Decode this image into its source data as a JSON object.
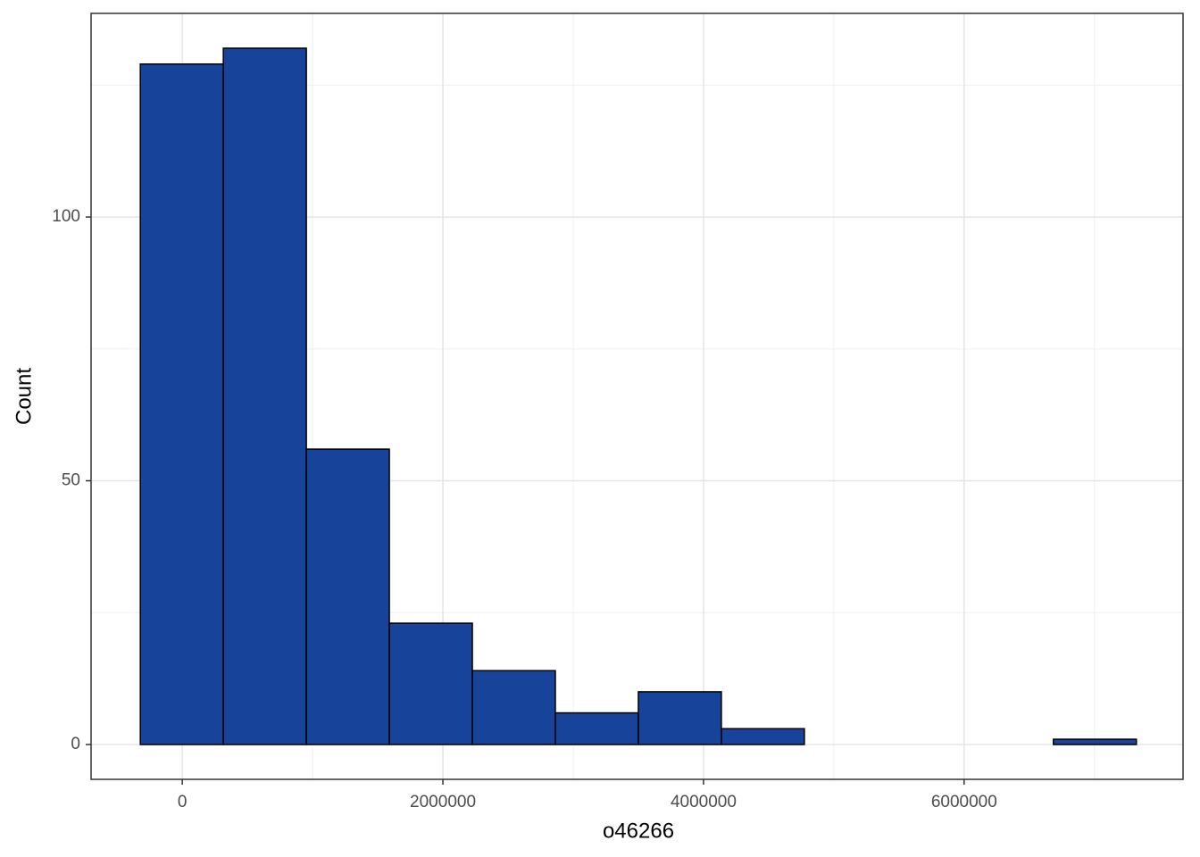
{
  "chart_data": {
    "type": "histogram",
    "x_label": "o46266",
    "y_label": "Count",
    "bins": [
      -322000,
      315000,
      952000,
      1589000,
      2226000,
      2863000,
      3500000,
      4137000,
      4774000,
      5411000,
      6048000,
      6685000,
      7322000
    ],
    "values": [
      129,
      132,
      56,
      23,
      14,
      6,
      10,
      3,
      0,
      0,
      0,
      1
    ],
    "color": "#17449a",
    "edge_color": "#000000",
    "xlim": [
      -700000,
      7680000
    ],
    "ylim": [
      -6.6,
      138.6
    ],
    "xticks": [
      0,
      2000000,
      4000000,
      6000000
    ],
    "yticks": [
      0,
      50,
      100
    ],
    "x_minor_grid": [
      1000000,
      3000000,
      5000000,
      7000000
    ],
    "y_minor_grid": [
      25,
      75,
      125
    ],
    "grid": true
  }
}
